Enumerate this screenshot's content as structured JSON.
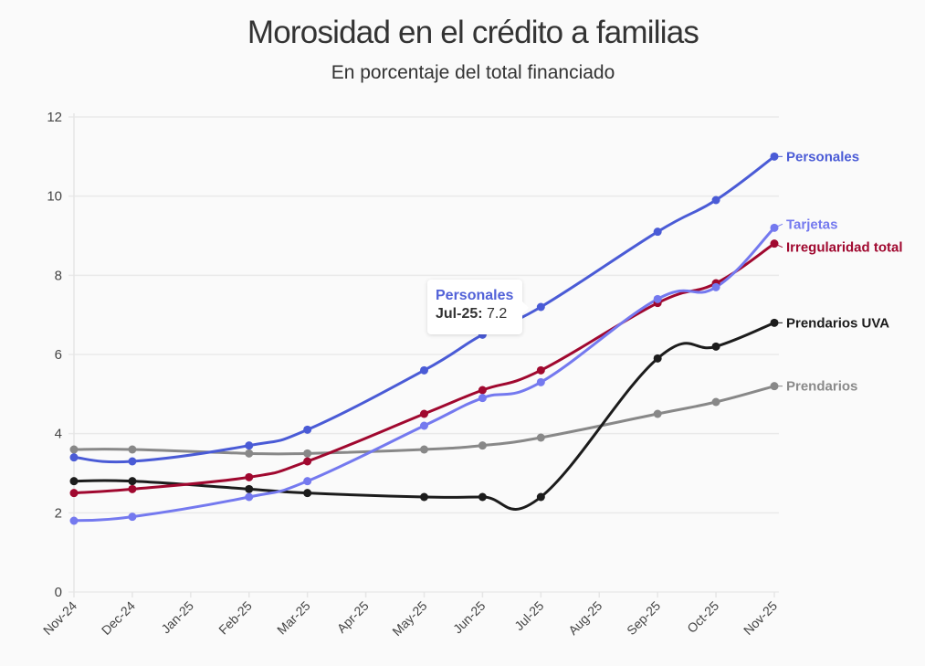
{
  "chart_data": {
    "type": "line",
    "title": "Morosidad en el crédito a familias",
    "subtitle": "En porcentaje del total financiado",
    "xlabel": "",
    "ylabel": "",
    "ylim": [
      0,
      12
    ],
    "yticks": [
      0,
      2,
      4,
      6,
      8,
      10,
      12
    ],
    "grid": true,
    "legend": "direct-labels-right",
    "categories": [
      "Nov-24",
      "Dec-24",
      "Jan-25",
      "Feb-25",
      "Mar-25",
      "Apr-25",
      "May-25",
      "Jun-25",
      "Jul-25",
      "Aug-25",
      "Sep-25",
      "Oct-25",
      "Nov-25"
    ],
    "series": [
      {
        "name": "Prendarios",
        "color": "#888888",
        "values": [
          3.6,
          3.6,
          null,
          3.5,
          3.5,
          null,
          3.6,
          3.7,
          3.9,
          null,
          4.5,
          4.8,
          5.2
        ]
      },
      {
        "name": "Prendarios UVA",
        "color": "#1c1c1c",
        "values": [
          2.8,
          2.8,
          null,
          2.6,
          2.5,
          null,
          2.4,
          2.4,
          2.4,
          null,
          5.9,
          6.2,
          6.8
        ]
      },
      {
        "name": "Irregularidad total",
        "color": "#a0082f",
        "values": [
          2.5,
          2.6,
          null,
          2.9,
          3.3,
          null,
          4.5,
          5.1,
          5.6,
          null,
          7.3,
          7.8,
          8.8
        ]
      },
      {
        "name": "Tarjetas",
        "color": "#7479ef",
        "values": [
          1.8,
          1.9,
          null,
          2.4,
          2.8,
          null,
          4.2,
          4.9,
          5.3,
          null,
          7.4,
          7.7,
          9.2
        ]
      },
      {
        "name": "Personales",
        "color": "#4a5bd6",
        "values": [
          3.4,
          3.3,
          null,
          3.7,
          4.1,
          null,
          5.6,
          6.5,
          7.2,
          null,
          9.1,
          9.9,
          11.0
        ]
      }
    ]
  },
  "tooltip": {
    "series": "Personales",
    "category": "Jul-25:",
    "value": "7.2"
  }
}
